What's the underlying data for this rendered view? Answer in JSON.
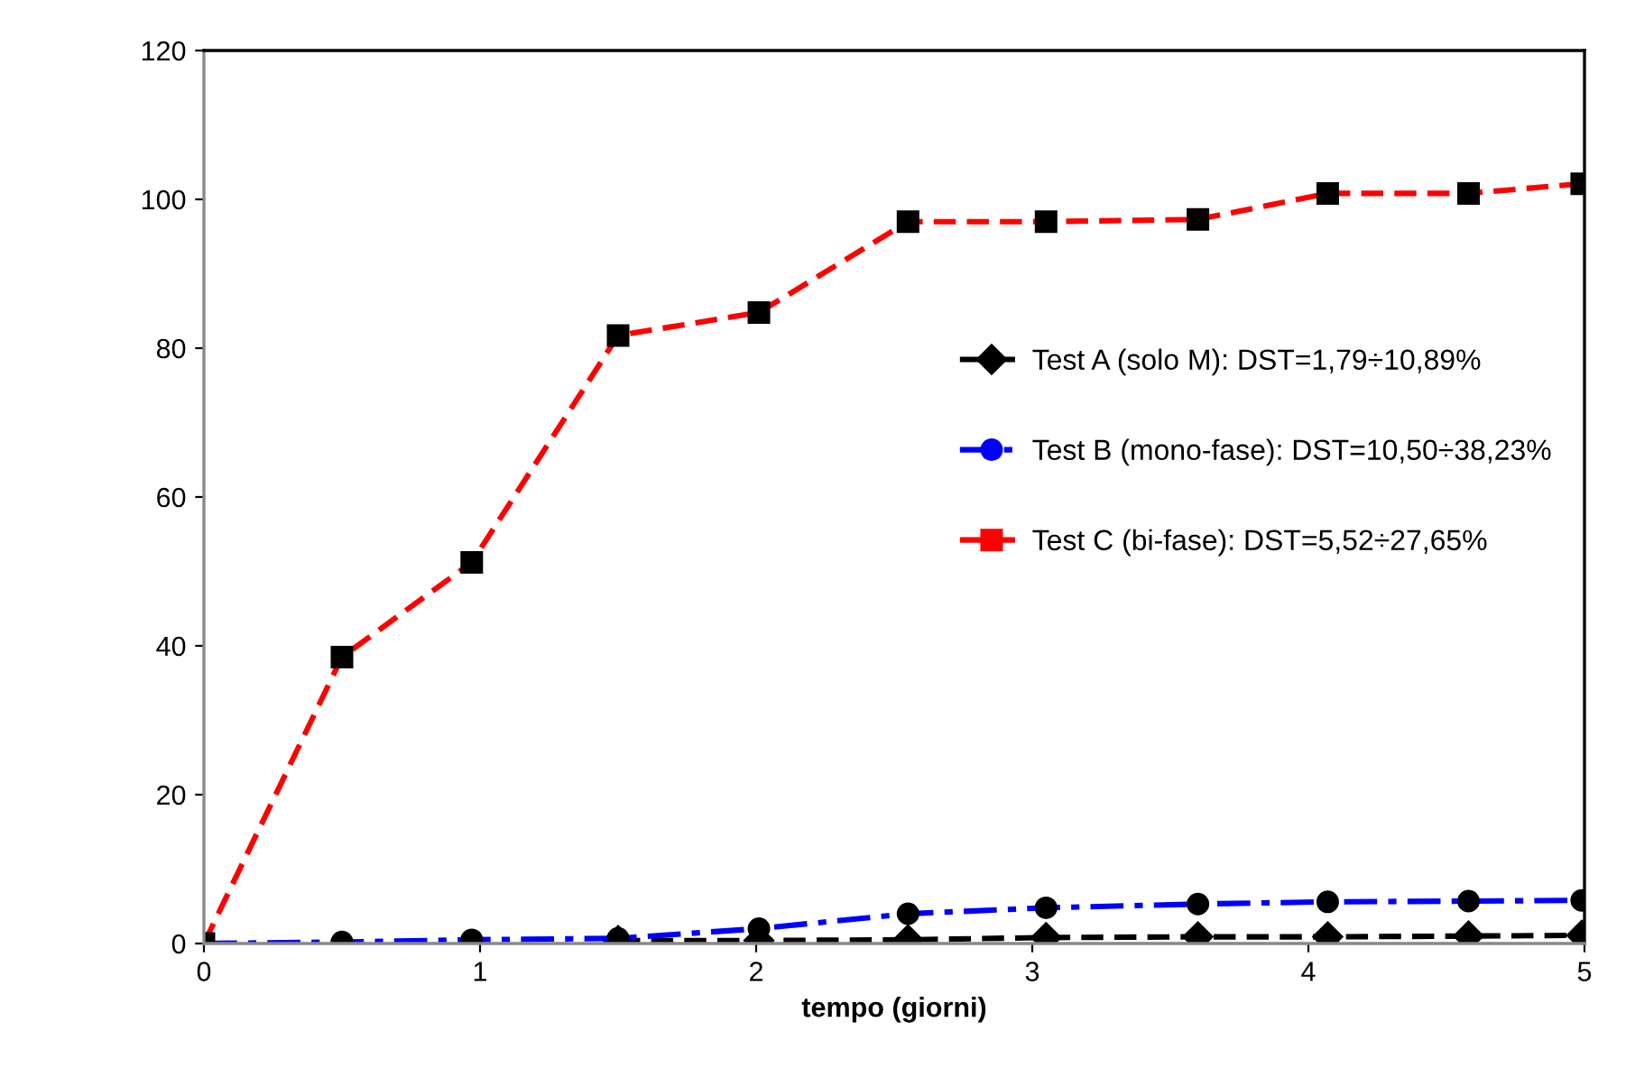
{
  "chart_data": {
    "type": "line",
    "xlabel": "tempo (giorni)",
    "x": [
      0,
      0.5,
      0.97,
      1.5,
      2.01,
      2.55,
      3.05,
      3.6,
      4.07,
      4.58,
      4.99
    ],
    "series": [
      {
        "name": "Test A (solo M): DST=1,79÷10,89%",
        "color": "#000000",
        "marker": "diamond",
        "line_style": "dashed",
        "values": [
          null,
          null,
          null,
          0.4,
          0.4,
          0.5,
          0.8,
          0.9,
          0.9,
          1.0,
          1.1
        ]
      },
      {
        "name": "Test B (mono-fase): DST=10,50÷38,23%",
        "color": "#0000ff",
        "marker": "circle",
        "line_style": "dashdot",
        "values": [
          0,
          0.2,
          0.5,
          0.7,
          2.0,
          4.0,
          4.8,
          5.3,
          5.6,
          5.7,
          5.8
        ]
      },
      {
        "name": "Test C (bi-fase): DST=5,52÷27,65%",
        "color": "#ff0000",
        "marker": "square",
        "line_style": "dashed",
        "values": [
          0,
          38.5,
          51.2,
          81.7,
          84.8,
          97.0,
          97.0,
          97.3,
          100.8,
          100.8,
          102.1
        ]
      }
    ],
    "xlim": [
      0,
      5
    ],
    "xticks": [
      0,
      1,
      2,
      3,
      4,
      5
    ],
    "ylim": [
      0,
      120
    ],
    "yticks": [
      0,
      20,
      40,
      60,
      80,
      100,
      120
    ],
    "grid": false,
    "legend": "right"
  }
}
